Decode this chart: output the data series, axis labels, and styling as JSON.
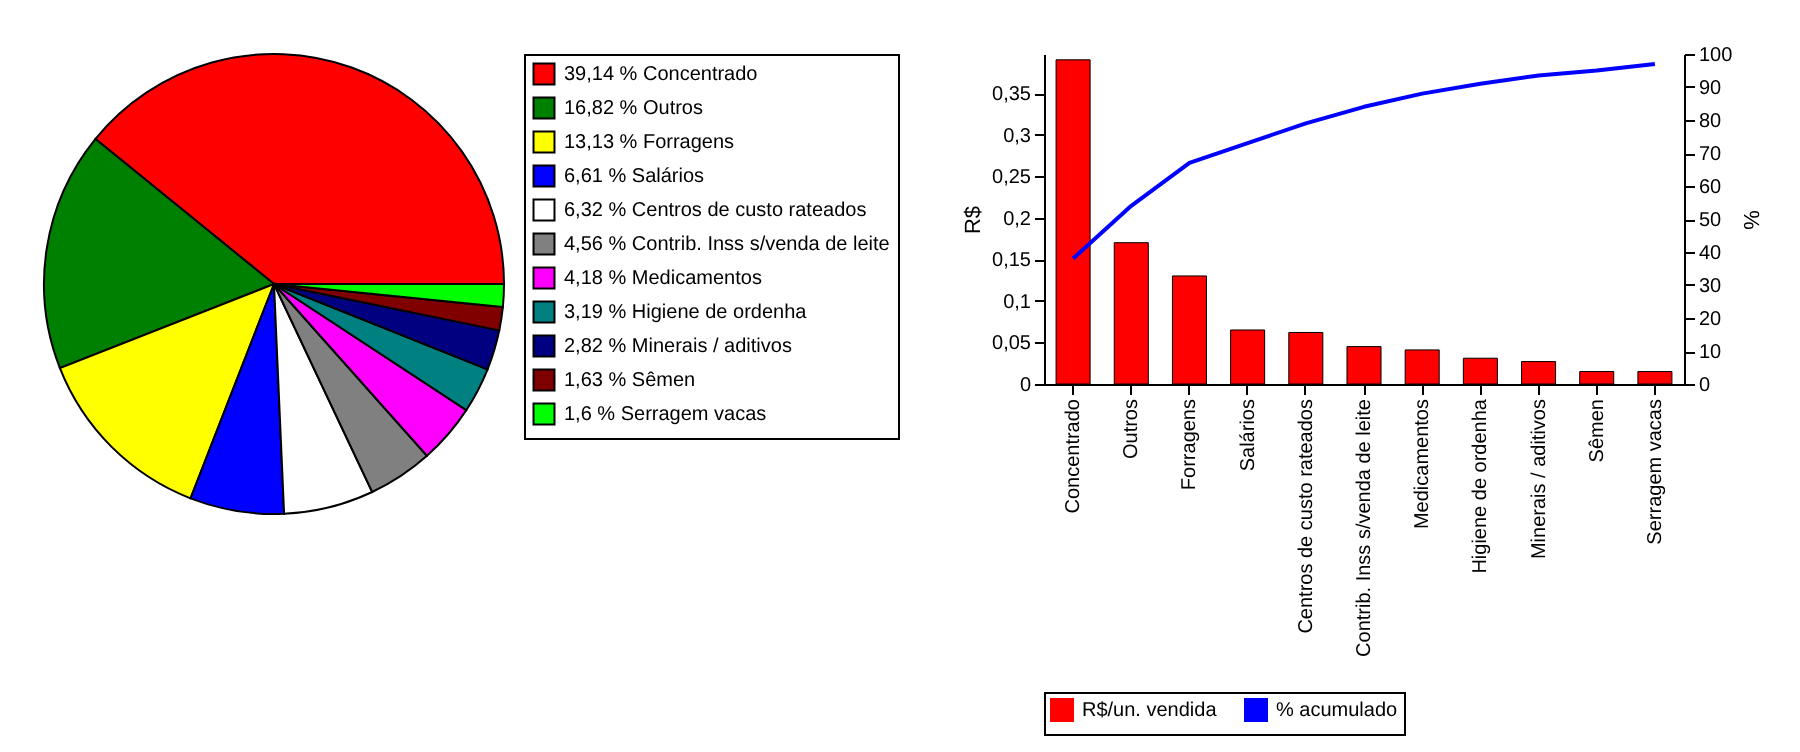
{
  "chart_data": [
    {
      "type": "pie",
      "categories": [
        "39,14 % Concentrado",
        "16,82 % Outros",
        "13,13 % Forragens",
        "6,61 % Salários",
        "6,32 % Centros de custo rateados",
        "4,56 % Contrib. Inss s/venda de leite",
        "4,18 % Medicamentos",
        "3,19 % Higiene de ordenha",
        "2,82 % Minerais / aditivos",
        "1,63 % Sêmen",
        "1,6 % Serragem vacas"
      ],
      "values": [
        39.14,
        16.82,
        13.13,
        6.61,
        6.32,
        4.56,
        4.18,
        3.19,
        2.82,
        1.63,
        1.6
      ],
      "colors": [
        "#ff0000",
        "#008000",
        "#ffff00",
        "#0000ff",
        "#ffffff",
        "#808080",
        "#ff00ff",
        "#008080",
        "#000080",
        "#800000",
        "#00ff00"
      ],
      "legend": "right"
    },
    {
      "type": "bar",
      "ylabel": "R$",
      "y2label": "%",
      "categories": [
        "Concentrado",
        "Outros",
        "Forragens",
        "Salários",
        "Centros de custo rateados",
        "Contrib. Inss s/venda de leite",
        "Medicamentos",
        "Higiene de ordenha",
        "Minerais / aditivos",
        "Sêmen",
        "Serragem vacas"
      ],
      "series": [
        {
          "name": "R$/un. vendida",
          "type": "bar",
          "color": "#ff0000",
          "values": [
            0.39,
            0.17,
            0.13,
            0.065,
            0.062,
            0.045,
            0.041,
            0.031,
            0.027,
            0.015,
            0.015
          ]
        },
        {
          "name": "% acumulado",
          "type": "line",
          "axis": "y2",
          "color": "#0000ff",
          "values": [
            38,
            54,
            67,
            73,
            79,
            84,
            88,
            91,
            93.5,
            95,
            97
          ]
        }
      ],
      "ylim": [
        0,
        0.397
      ],
      "yticks": [
        0,
        {
          "value": 0.05,
          "label": "0,05"
        },
        {
          "value": 0.1,
          "label": "0,1"
        },
        {
          "value": 0.15,
          "label": "0,15"
        },
        {
          "value": 0.2,
          "label": "0,2"
        },
        {
          "value": 0.25,
          "label": "0,25"
        },
        {
          "value": 0.3,
          "label": "0,3"
        },
        {
          "value": 0.35,
          "label": "0,35"
        }
      ],
      "y2lim": [
        0,
        100
      ],
      "y2ticks": [
        0,
        10,
        20,
        30,
        40,
        50,
        60,
        70,
        80,
        90,
        100
      ],
      "legend": "bottom",
      "marker": "none",
      "grid": false
    }
  ]
}
